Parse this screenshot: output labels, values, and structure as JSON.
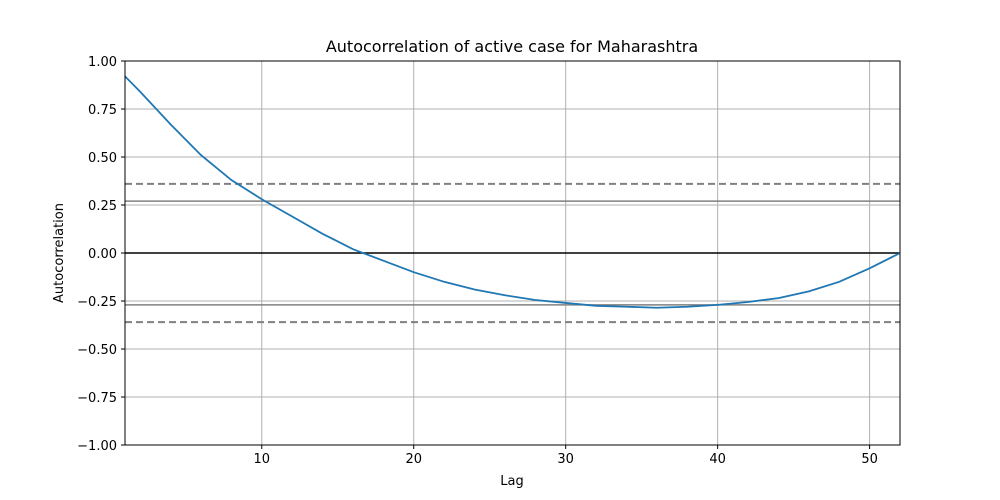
{
  "chart_data": {
    "type": "line",
    "title": "Autocorrelation of active case for Maharashtra",
    "xlabel": "Lag",
    "ylabel": "Autocorrelation",
    "xlim": [
      1,
      52
    ],
    "ylim": [
      -1.0,
      1.0
    ],
    "grid": true,
    "x_ticks": [
      10,
      20,
      30,
      40,
      50
    ],
    "x_tick_labels": [
      "10",
      "20",
      "30",
      "40",
      "50"
    ],
    "y_ticks": [
      -1.0,
      -0.75,
      -0.5,
      -0.25,
      0.0,
      0.25,
      0.5,
      0.75,
      1.0
    ],
    "y_tick_labels": [
      "−1.00",
      "−0.75",
      "−0.50",
      "−0.25",
      "0.00",
      "0.25",
      "0.50",
      "0.75",
      "1.00"
    ],
    "series": [
      {
        "color": "#1f77b4",
        "x": [
          1,
          2,
          4,
          6,
          8,
          10,
          12,
          14,
          15,
          16,
          18,
          20,
          22,
          24,
          26,
          28,
          30,
          32,
          34,
          36,
          38,
          40,
          42,
          44,
          46,
          48,
          50,
          52
        ],
        "y": [
          0.92,
          0.84,
          0.67,
          0.51,
          0.38,
          0.28,
          0.19,
          0.1,
          0.06,
          0.02,
          -0.04,
          -0.1,
          -0.15,
          -0.19,
          -0.22,
          -0.245,
          -0.26,
          -0.275,
          -0.28,
          -0.285,
          -0.28,
          -0.27,
          -0.255,
          -0.235,
          -0.2,
          -0.15,
          -0.08,
          0.0
        ]
      }
    ],
    "reference_lines": [
      {
        "y": 0.0,
        "style": "solid",
        "color": "#000000"
      },
      {
        "y": 0.27,
        "style": "solid",
        "color": "#808080"
      },
      {
        "y": -0.27,
        "style": "solid",
        "color": "#808080"
      },
      {
        "y": 0.36,
        "style": "dashed",
        "color": "#808080"
      },
      {
        "y": -0.36,
        "style": "dashed",
        "color": "#808080"
      }
    ]
  }
}
